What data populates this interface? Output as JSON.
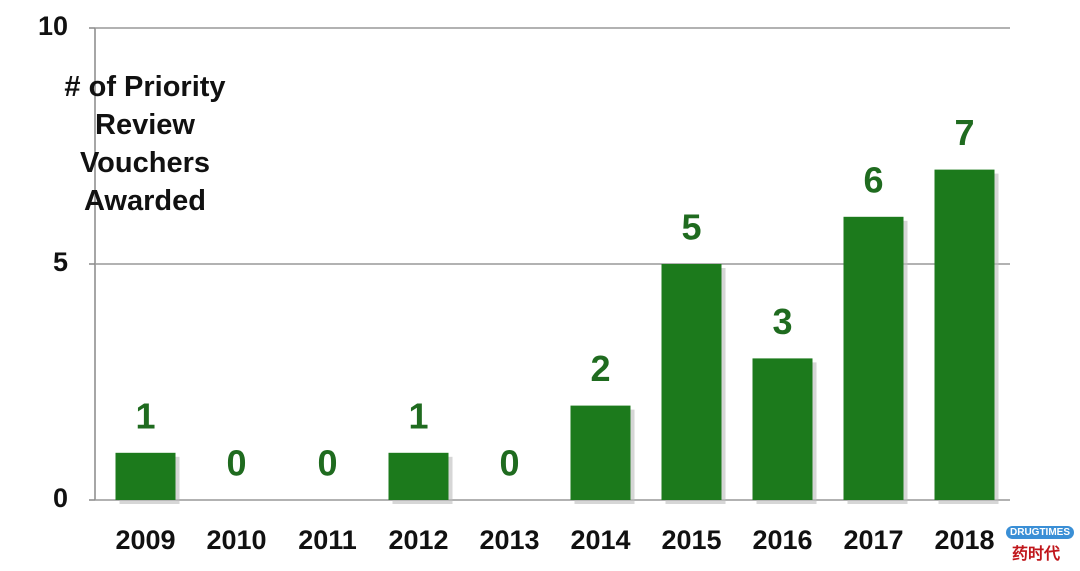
{
  "chart_data": {
    "type": "bar",
    "y_label": "# of Priority Review Vouchers Awarded",
    "categories": [
      "2009",
      "2010",
      "2011",
      "2012",
      "2013",
      "2014",
      "2015",
      "2016",
      "2017",
      "2018"
    ],
    "values": [
      1,
      0,
      0,
      1,
      0,
      2,
      5,
      3,
      6,
      7
    ],
    "color": "#1c7a1c",
    "label_color": "#1f6b1f",
    "ylim": [
      0,
      10
    ],
    "yticks": [
      0,
      5,
      10
    ],
    "grid": true
  },
  "watermark": {
    "top": "DRUG",
    "top_right": "TIMES",
    "bottom": "药时代"
  }
}
